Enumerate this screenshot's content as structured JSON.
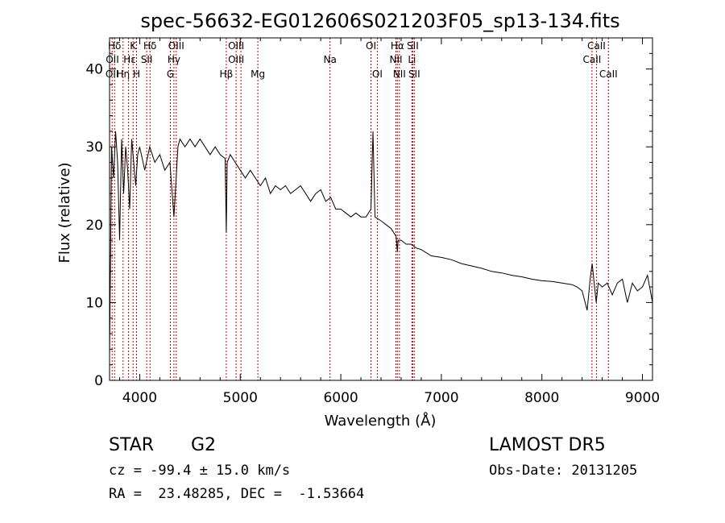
{
  "chart_data": {
    "type": "line",
    "title": "spec-56632-EG012606S021203F05_sp13-134.fits",
    "xlabel": "Wavelength (Å)",
    "ylabel": "Flux (relative)",
    "xlim": [
      3700,
      9100
    ],
    "ylim": [
      0,
      44
    ],
    "x_ticks": [
      4000,
      5000,
      6000,
      7000,
      8000,
      9000
    ],
    "y_ticks": [
      0,
      10,
      20,
      30,
      40
    ],
    "x_tick_labels": [
      "4000",
      "5000",
      "6000",
      "7000",
      "8000",
      "9000"
    ],
    "y_tick_labels": [
      "0",
      "10",
      "20",
      "30",
      "40"
    ],
    "grid": false,
    "series": [
      {
        "x": [
          3700,
          3720,
          3740,
          3760,
          3780,
          3800,
          3820,
          3840,
          3860,
          3880,
          3900,
          3920,
          3940,
          3960,
          3980,
          4000,
          4050,
          4100,
          4150,
          4200,
          4250,
          4300,
          4340,
          4380,
          4400,
          4450,
          4500,
          4550,
          4600,
          4650,
          4700,
          4750,
          4800,
          4850,
          4861,
          4870,
          4900,
          4950,
          5000,
          5050,
          5100,
          5150,
          5200,
          5250,
          5300,
          5350,
          5400,
          5450,
          5500,
          5550,
          5600,
          5650,
          5700,
          5750,
          5800,
          5850,
          5900,
          5950,
          6000,
          6050,
          6100,
          6150,
          6200,
          6250,
          6300,
          6320,
          6340,
          6400,
          6450,
          6500,
          6550,
          6563,
          6570,
          6600,
          6650,
          6700,
          6750,
          6800,
          6900,
          7000,
          7100,
          7200,
          7300,
          7400,
          7500,
          7600,
          7700,
          7800,
          7900,
          8000,
          8100,
          8200,
          8300,
          8350,
          8400,
          8450,
          8480,
          8500,
          8520,
          8540,
          8560,
          8600,
          8650,
          8700,
          8750,
          8800,
          8850,
          8900,
          8950,
          9000,
          9050,
          9100
        ],
        "y": [
          3,
          30,
          26,
          32,
          28,
          18,
          31,
          24,
          30,
          27,
          22,
          31,
          28,
          25,
          29,
          30,
          27,
          30,
          28,
          29,
          27,
          28,
          21,
          30,
          31,
          30,
          31,
          30,
          31,
          30,
          29,
          30,
          29,
          28.5,
          19,
          28,
          29,
          28,
          27,
          26,
          27,
          26,
          25,
          26,
          24,
          25,
          24.5,
          25,
          24,
          24.5,
          25,
          24,
          23,
          24,
          24.5,
          23,
          23.5,
          22,
          22,
          21.5,
          21,
          21.5,
          21,
          21,
          22,
          32,
          21,
          20.5,
          20,
          19.5,
          18.5,
          16.5,
          18,
          18,
          17.5,
          17.5,
          17,
          16.8,
          16,
          15.8,
          15.5,
          15,
          14.7,
          14.4,
          14,
          13.8,
          13.5,
          13.3,
          13,
          12.8,
          12.7,
          12.5,
          12.3,
          12,
          11.5,
          9,
          13,
          15,
          12.5,
          10,
          12.5,
          12,
          12.5,
          11,
          12.5,
          13,
          10,
          12.5,
          11.5,
          12,
          13.5,
          10
        ]
      }
    ],
    "line_marks": [
      {
        "label": "Hδ",
        "x": 3750,
        "row": 0
      },
      {
        "label": "OII",
        "x": 3728,
        "row": 1
      },
      {
        "label": "OII",
        "x": 3726,
        "row": 2
      },
      {
        "label": "Hη",
        "x": 3835,
        "row": 2
      },
      {
        "label": "K",
        "x": 3934,
        "row": 0
      },
      {
        "label": "H",
        "x": 3968,
        "row": 2
      },
      {
        "label": "Hε",
        "x": 3900,
        "row": 1
      },
      {
        "label": "Hδ",
        "x": 4102,
        "row": 0
      },
      {
        "label": "SII",
        "x": 4069,
        "row": 1
      },
      {
        "label": "OIII",
        "x": 4363,
        "row": 0
      },
      {
        "label": "Hγ",
        "x": 4340,
        "row": 1
      },
      {
        "label": "G",
        "x": 4305,
        "row": 2
      },
      {
        "label": "Hβ",
        "x": 4861,
        "row": 2
      },
      {
        "label": "OIII",
        "x": 4959,
        "row": 0
      },
      {
        "label": "OIII",
        "x": 4959,
        "row": 1
      },
      {
        "label": "Mg",
        "x": 5175,
        "row": 2
      },
      {
        "label": "Na",
        "x": 5893,
        "row": 1
      },
      {
        "label": "OI",
        "x": 6300,
        "row": 0
      },
      {
        "label": "OI",
        "x": 6363,
        "row": 2
      },
      {
        "label": "Hα",
        "x": 6563,
        "row": 0
      },
      {
        "label": "SII",
        "x": 6716,
        "row": 0
      },
      {
        "label": "NII",
        "x": 6548,
        "row": 1
      },
      {
        "label": "Li",
        "x": 6708,
        "row": 1
      },
      {
        "label": "NII",
        "x": 6583,
        "row": 2
      },
      {
        "label": "SII",
        "x": 6731,
        "row": 2
      },
      {
        "label": "CaII",
        "x": 8542,
        "row": 0
      },
      {
        "label": "CaII",
        "x": 8498,
        "row": 1
      },
      {
        "label": "CaII",
        "x": 8662,
        "row": 2
      }
    ],
    "mark_lines_x": [
      3726,
      3750,
      3835,
      3889,
      3934,
      3968,
      4069,
      4102,
      4305,
      4340,
      4363,
      4861,
      4959,
      5007,
      5175,
      5893,
      6300,
      6363,
      6548,
      6563,
      6583,
      6708,
      6716,
      6731,
      8498,
      8542,
      8662
    ]
  },
  "info": {
    "object_class": "STAR",
    "subclass": "G2",
    "survey": "LAMOST DR5",
    "cz": "cz = -99.4 ± 15.0 km/s",
    "obs_date": "Obs-Date: 20131205",
    "coords": "RA =  23.48285, DEC =  -1.53664"
  },
  "colors": {
    "spectrum": "#000000",
    "mark_line": "#cc0000",
    "text": "#000000"
  }
}
